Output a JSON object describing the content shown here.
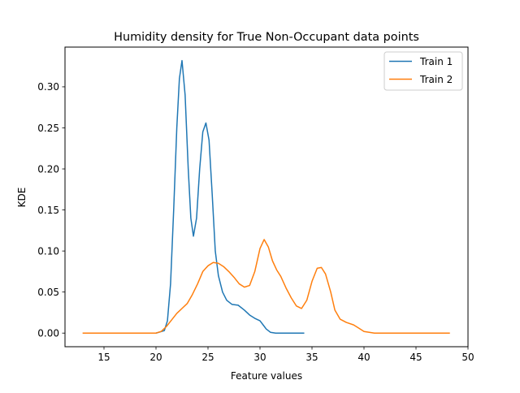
{
  "chart_data": {
    "type": "line",
    "title": "Humidity density for True Non-Occupant data points",
    "xlabel": "Feature values",
    "ylabel": "KDE",
    "xlim": [
      11.25,
      50.0
    ],
    "ylim": [
      -0.0166,
      0.3484
    ],
    "xticks": [
      15,
      20,
      25,
      30,
      35,
      40,
      45,
      50
    ],
    "yticks": [
      0.0,
      0.05,
      0.1,
      0.15,
      0.2,
      0.25,
      0.3
    ],
    "xtick_labels": [
      "15",
      "20",
      "25",
      "30",
      "35",
      "40",
      "45",
      "50"
    ],
    "ytick_labels": [
      "0.00",
      "0.05",
      "0.10",
      "0.15",
      "0.20",
      "0.25",
      "0.30"
    ],
    "grid": false,
    "legend": "upper-right",
    "series": [
      {
        "name": "Train 1",
        "color": "#1f77b4",
        "points": [
          [
            18.0,
            0.0
          ],
          [
            20.0,
            0.0
          ],
          [
            20.8,
            0.003
          ],
          [
            21.1,
            0.015
          ],
          [
            21.4,
            0.06
          ],
          [
            21.7,
            0.15
          ],
          [
            22.0,
            0.25
          ],
          [
            22.25,
            0.31
          ],
          [
            22.5,
            0.332
          ],
          [
            22.8,
            0.29
          ],
          [
            23.1,
            0.2
          ],
          [
            23.35,
            0.14
          ],
          [
            23.6,
            0.118
          ],
          [
            23.9,
            0.14
          ],
          [
            24.2,
            0.2
          ],
          [
            24.5,
            0.245
          ],
          [
            24.8,
            0.256
          ],
          [
            25.1,
            0.235
          ],
          [
            25.4,
            0.17
          ],
          [
            25.7,
            0.1
          ],
          [
            26.0,
            0.07
          ],
          [
            26.4,
            0.05
          ],
          [
            26.8,
            0.04
          ],
          [
            27.3,
            0.035
          ],
          [
            27.9,
            0.034
          ],
          [
            28.5,
            0.028
          ],
          [
            29.0,
            0.022
          ],
          [
            29.5,
            0.018
          ],
          [
            30.0,
            0.015
          ],
          [
            30.3,
            0.01
          ],
          [
            30.6,
            0.005
          ],
          [
            31.0,
            0.001
          ],
          [
            31.5,
            0.0
          ],
          [
            32.5,
            0.0
          ],
          [
            34.2,
            0.0
          ]
        ]
      },
      {
        "name": "Train 2",
        "color": "#ff7f0e",
        "points": [
          [
            13.0,
            0.0
          ],
          [
            17.0,
            0.0
          ],
          [
            19.0,
            0.0
          ],
          [
            20.0,
            0.0
          ],
          [
            20.5,
            0.002
          ],
          [
            21.0,
            0.008
          ],
          [
            21.5,
            0.016
          ],
          [
            22.0,
            0.024
          ],
          [
            22.5,
            0.03
          ],
          [
            23.0,
            0.036
          ],
          [
            23.5,
            0.047
          ],
          [
            24.0,
            0.06
          ],
          [
            24.5,
            0.075
          ],
          [
            25.0,
            0.082
          ],
          [
            25.5,
            0.086
          ],
          [
            26.0,
            0.085
          ],
          [
            26.5,
            0.081
          ],
          [
            27.0,
            0.075
          ],
          [
            27.5,
            0.068
          ],
          [
            28.0,
            0.06
          ],
          [
            28.5,
            0.056
          ],
          [
            29.0,
            0.058
          ],
          [
            29.5,
            0.075
          ],
          [
            30.0,
            0.103
          ],
          [
            30.4,
            0.114
          ],
          [
            30.8,
            0.105
          ],
          [
            31.2,
            0.088
          ],
          [
            31.6,
            0.077
          ],
          [
            32.0,
            0.069
          ],
          [
            32.5,
            0.055
          ],
          [
            33.0,
            0.043
          ],
          [
            33.5,
            0.033
          ],
          [
            34.0,
            0.03
          ],
          [
            34.5,
            0.04
          ],
          [
            35.0,
            0.063
          ],
          [
            35.5,
            0.079
          ],
          [
            35.9,
            0.08
          ],
          [
            36.3,
            0.072
          ],
          [
            36.8,
            0.05
          ],
          [
            37.2,
            0.028
          ],
          [
            37.7,
            0.017
          ],
          [
            38.3,
            0.013
          ],
          [
            39.0,
            0.01
          ],
          [
            39.5,
            0.006
          ],
          [
            40.0,
            0.002
          ],
          [
            41.0,
            0.0
          ],
          [
            44.0,
            0.0
          ],
          [
            48.2,
            0.0
          ]
        ]
      }
    ]
  }
}
